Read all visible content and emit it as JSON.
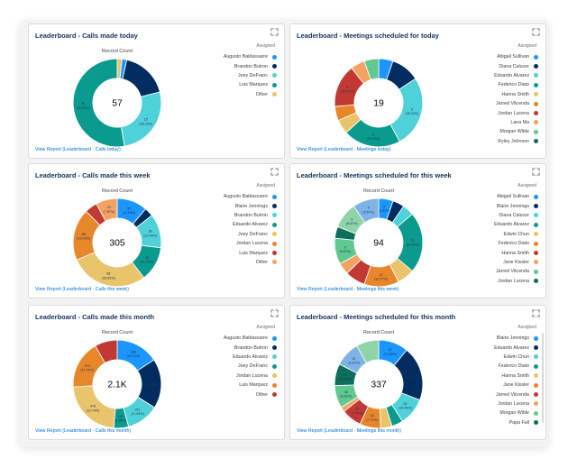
{
  "legend_title": "Assigned",
  "record_count_label": "Record Count",
  "cards": [
    {
      "title": "Leaderboard - Calls made today",
      "link": "View Report (Leaderboard - Calls today)",
      "center": "57",
      "legend": [
        {
          "name": "Augusto Baldassarre",
          "color": "#1b96ff"
        },
        {
          "name": "Brandon Butron",
          "color": "#032d60"
        },
        {
          "name": "Joey DeFranc",
          "color": "#4fd1d9"
        },
        {
          "name": "Luis Marquez",
          "color": "#0b9a8e"
        },
        {
          "name": "Other",
          "color": "#e9c46a"
        }
      ],
      "slices": [
        {
          "value": 1,
          "color": "#e9c46a",
          "label": ""
        },
        {
          "value": 1,
          "color": "#1b96ff",
          "label": ""
        },
        {
          "value": 10,
          "color": "#032d60",
          "label": "10 (17.54%)"
        },
        {
          "value": 15,
          "color": "#4fd1d9",
          "label": "15 (26.32%)"
        },
        {
          "value": 30,
          "color": "#0b9a8e",
          "label": "30 (52.63%)"
        }
      ]
    },
    {
      "title": "Leaderboard - Meetings scheduled for today",
      "link": "View Report (Leaderboard - Meetings today)",
      "center": "19",
      "legend": [
        {
          "name": "Abigail Sullivan",
          "color": "#1b96ff"
        },
        {
          "name": "Diana Calucer",
          "color": "#032d60"
        },
        {
          "name": "Eduardo Alvarez",
          "color": "#4fd1d9"
        },
        {
          "name": "Federico Diato",
          "color": "#0b9a8e"
        },
        {
          "name": "Hanna Smith",
          "color": "#e9c46a"
        },
        {
          "name": "Jarred Vitcenda",
          "color": "#e8862a"
        },
        {
          "name": "Jordan Lucena",
          "color": "#c23934"
        },
        {
          "name": "Lana Ma",
          "color": "#f4a261"
        },
        {
          "name": "Morgan Wible",
          "color": "#5fc98f"
        },
        {
          "name": "Ryley Johnson",
          "color": "#0d6e5c"
        }
      ],
      "slices": [
        {
          "value": 1,
          "color": "#1b96ff",
          "label": ""
        },
        {
          "value": 2,
          "color": "#032d60",
          "label": "2 (10.53%)"
        },
        {
          "value": 5,
          "color": "#4fd1d9",
          "label": "5 (26.32%)"
        },
        {
          "value": 4,
          "color": "#0b9a8e",
          "label": "4 (21.05%)"
        },
        {
          "value": 1,
          "color": "#e9c46a",
          "label": ""
        },
        {
          "value": 1,
          "color": "#e8862a",
          "label": ""
        },
        {
          "value": 3,
          "color": "#c23934",
          "label": "3 (15.79%)"
        },
        {
          "value": 1,
          "color": "#f4a261",
          "label": ""
        },
        {
          "value": 1,
          "color": "#5fc98f",
          "label": ""
        }
      ]
    },
    {
      "title": "Leaderboard - Calls made this week",
      "link": "View Report (Leaderboard - Calls this week)",
      "center": "305",
      "legend": [
        {
          "name": "Augusto Baldassarre",
          "color": "#1b96ff"
        },
        {
          "name": "Blaire Jennings",
          "color": "#032d60"
        },
        {
          "name": "Brandon Butron",
          "color": "#4fd1d9"
        },
        {
          "name": "Eduardo Alvarez",
          "color": "#0b9a8e"
        },
        {
          "name": "Joey DeFranc",
          "color": "#e9c46a"
        },
        {
          "name": "Jordan Lucena",
          "color": "#e8862a"
        },
        {
          "name": "Luis Marquez",
          "color": "#c23934"
        },
        {
          "name": "Other",
          "color": "#f4a261"
        }
      ],
      "slices": [
        {
          "value": 34,
          "color": "#1b96ff",
          "label": "34 (11.15%)"
        },
        {
          "value": 10,
          "color": "#032d60",
          "label": ""
        },
        {
          "value": 38,
          "color": "#4fd1d9",
          "label": "38 (12.46%)"
        },
        {
          "value": 39,
          "color": "#0b9a8e",
          "label": "39 (12.79%)"
        },
        {
          "value": 88,
          "color": "#e9c46a",
          "label": "88 (28.85%)"
        },
        {
          "value": 58,
          "color": "#e8862a",
          "label": "58 (19.02%)"
        },
        {
          "value": 14,
          "color": "#c23934",
          "label": ""
        },
        {
          "value": 24,
          "color": "#f4a261",
          "label": "24 (7.87%)"
        }
      ]
    },
    {
      "title": "Leaderboard - Meetings scheduled for this week",
      "link": "View Report (Leaderboard - Meetings this week)",
      "center": "94",
      "legend": [
        {
          "name": "Abigail Sullivan",
          "color": "#1b96ff"
        },
        {
          "name": "Blaire Jennings",
          "color": "#032d60"
        },
        {
          "name": "Diana Calucer",
          "color": "#4fd1d9"
        },
        {
          "name": "Eduardo Alvarez",
          "color": "#0b9a8e"
        },
        {
          "name": "Edwin Chun",
          "color": "#e9c46a"
        },
        {
          "name": "Federico Diato",
          "color": "#e8862a"
        },
        {
          "name": "Hanna Smith",
          "color": "#c23934"
        },
        {
          "name": "Jane Kissler",
          "color": "#f4a261"
        },
        {
          "name": "Jarred Vitcenda",
          "color": "#5fc98f"
        },
        {
          "name": "Jordan Lucena",
          "color": "#0d6e5c"
        }
      ],
      "slices": [
        {
          "value": 5,
          "color": "#1b96ff",
          "label": "5 (5.32%)"
        },
        {
          "value": 4,
          "color": "#032d60",
          "label": ""
        },
        {
          "value": 4,
          "color": "#4fd1d9",
          "label": ""
        },
        {
          "value": 21,
          "color": "#0b9a8e",
          "label": "21 (22.34%)"
        },
        {
          "value": 6,
          "color": "#e9c46a",
          "label": ""
        },
        {
          "value": 12,
          "color": "#e8862a",
          "label": "12 (12.77%)"
        },
        {
          "value": 7,
          "color": "#c23934",
          "label": ""
        },
        {
          "value": 4,
          "color": "#f4a261",
          "label": ""
        },
        {
          "value": 9,
          "color": "#5fc98f",
          "label": "9 (9.57%)"
        },
        {
          "value": 4,
          "color": "#0d6e5c",
          "label": ""
        },
        {
          "value": 9,
          "color": "#8fd3a8",
          "label": "9 (9.57%)"
        },
        {
          "value": 9,
          "color": "#7fb3e8",
          "label": "9 (9.57%)"
        }
      ]
    },
    {
      "title": "Leaderboard - Calls made this month",
      "link": "View Report (Leaderboard - Calls this month)",
      "center": "2.1K",
      "legend": [
        {
          "name": "Augusto Baldassarre",
          "color": "#1b96ff"
        },
        {
          "name": "Brandon Butron",
          "color": "#032d60"
        },
        {
          "name": "Eduardo Alvarez",
          "color": "#4fd1d9"
        },
        {
          "name": "Joey DeFranc",
          "color": "#0b9a8e"
        },
        {
          "name": "Jordan Lucena",
          "color": "#e9c46a"
        },
        {
          "name": "Luis Marquez",
          "color": "#e8862a"
        },
        {
          "name": "Other",
          "color": "#c23934"
        }
      ],
      "slices": [
        {
          "value": 330,
          "color": "#1b96ff",
          "label": "330 (15.70%)"
        },
        {
          "value": 383,
          "color": "#032d60",
          "label": "383 (18.22%)"
        },
        {
          "value": 251,
          "color": "#4fd1d9",
          "label": "251 (11.94%)"
        },
        {
          "value": 113,
          "color": "#0b9a8e",
          "label": "113 (5.38%)"
        },
        {
          "value": 478,
          "color": "#e9c46a",
          "label": "478 (22.74%)"
        },
        {
          "value": 373,
          "color": "#e8862a",
          "label": "373 (17.75%)"
        },
        {
          "value": 174,
          "color": "#c23934",
          "label": ""
        }
      ]
    },
    {
      "title": "Leaderboard - Meetings scheduled for this month",
      "link": "View Report (Leaderboard - Meetings this month)",
      "center": "337",
      "legend": [
        {
          "name": "Blaire Jennings",
          "color": "#1b96ff"
        },
        {
          "name": "Eduardo Alvarez",
          "color": "#032d60"
        },
        {
          "name": "Edwin Chun",
          "color": "#4fd1d9"
        },
        {
          "name": "Federico Diato",
          "color": "#0b9a8e"
        },
        {
          "name": "Hanna Smith",
          "color": "#e9c46a"
        },
        {
          "name": "Jane Kissler",
          "color": "#e8862a"
        },
        {
          "name": "Jarred Vitcenda",
          "color": "#c23934"
        },
        {
          "name": "Jordan Lucena",
          "color": "#f4a261"
        },
        {
          "name": "Morgan Wible",
          "color": "#5fc98f"
        },
        {
          "name": "Papa Fall",
          "color": "#0d6e5c"
        }
      ],
      "slices": [
        {
          "value": 37,
          "color": "#1b96ff",
          "label": "37 (10.98%)"
        },
        {
          "value": 67,
          "color": "#032d60",
          "label": "67 (19.88%)"
        },
        {
          "value": 34,
          "color": "#4fd1d9",
          "label": "34 (10.09%)"
        },
        {
          "value": 14,
          "color": "#0b9a8e",
          "label": ""
        },
        {
          "value": 14,
          "color": "#e9c46a",
          "label": ""
        },
        {
          "value": 26,
          "color": "#e8862a",
          "label": "26 (7.72%)"
        },
        {
          "value": 25,
          "color": "#c23934",
          "label": "25 (7.42%)"
        },
        {
          "value": 6,
          "color": "#f4a261",
          "label": ""
        },
        {
          "value": 28,
          "color": "#5fc98f",
          "label": "28 (8.31%)"
        },
        {
          "value": 27,
          "color": "#0d6e5c",
          "label": "27 (8.01%)"
        },
        {
          "value": 31,
          "color": "#7fb3e8",
          "label": "31 (9.20%)"
        },
        {
          "value": 28,
          "color": "#8fd3a8",
          "label": ""
        }
      ]
    }
  ]
}
